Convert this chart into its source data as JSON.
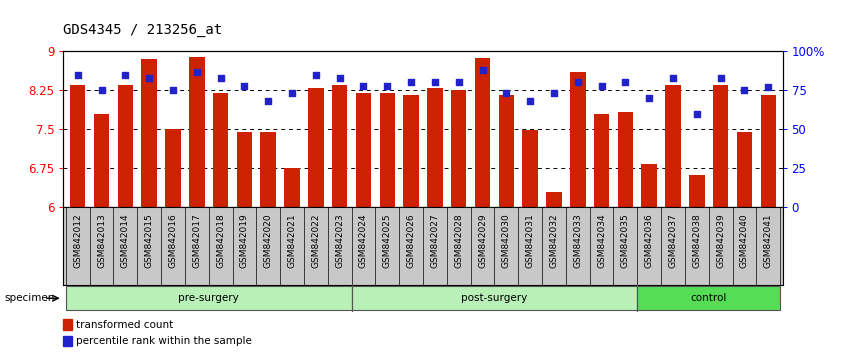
{
  "title": "GDS4345 / 213256_at",
  "samples": [
    "GSM842012",
    "GSM842013",
    "GSM842014",
    "GSM842015",
    "GSM842016",
    "GSM842017",
    "GSM842018",
    "GSM842019",
    "GSM842020",
    "GSM842021",
    "GSM842022",
    "GSM842023",
    "GSM842024",
    "GSM842025",
    "GSM842026",
    "GSM842027",
    "GSM842028",
    "GSM842029",
    "GSM842030",
    "GSM842031",
    "GSM842032",
    "GSM842033",
    "GSM842034",
    "GSM842035",
    "GSM842036",
    "GSM842037",
    "GSM842038",
    "GSM842039",
    "GSM842040",
    "GSM842041"
  ],
  "bar_values": [
    8.35,
    7.8,
    8.35,
    8.85,
    7.5,
    8.9,
    8.2,
    7.45,
    7.45,
    6.75,
    8.3,
    8.35,
    8.2,
    8.2,
    8.15,
    8.3,
    8.25,
    8.88,
    8.15,
    7.48,
    6.3,
    8.6,
    7.8,
    7.83,
    6.83,
    8.35,
    6.62,
    8.35,
    7.45,
    8.15
  ],
  "percentile_values": [
    85,
    75,
    85,
    83,
    75,
    87,
    83,
    78,
    68,
    73,
    85,
    83,
    78,
    78,
    80,
    80,
    80,
    88,
    73,
    68,
    73,
    80,
    78,
    80,
    70,
    83,
    60,
    83,
    75,
    77
  ],
  "groups": [
    {
      "label": "pre-surgery",
      "start": 0,
      "end": 12,
      "color": "#b8f0b8"
    },
    {
      "label": "post-surgery",
      "start": 12,
      "end": 24,
      "color": "#b8f0b8"
    },
    {
      "label": "control",
      "start": 24,
      "end": 30,
      "color": "#55dd55"
    }
  ],
  "ylim_left": [
    6,
    9
  ],
  "ylim_right": [
    0,
    100
  ],
  "yticks_left": [
    6,
    6.75,
    7.5,
    8.25,
    9
  ],
  "ytick_labels_left": [
    "6",
    "6.75",
    "7.5",
    "8.25",
    "9"
  ],
  "yticks_right": [
    0,
    25,
    50,
    75,
    100
  ],
  "ytick_labels_right": [
    "0",
    "25",
    "50",
    "75",
    "100%"
  ],
  "bar_color": "#cc2200",
  "dot_color": "#2222cc",
  "bar_width": 0.65,
  "legend_items": [
    {
      "label": "transformed count",
      "color": "#cc2200"
    },
    {
      "label": "percentile rank within the sample",
      "color": "#2222cc"
    }
  ],
  "title_fontsize": 10,
  "tick_fontsize": 6.5,
  "label_fontsize": 8
}
